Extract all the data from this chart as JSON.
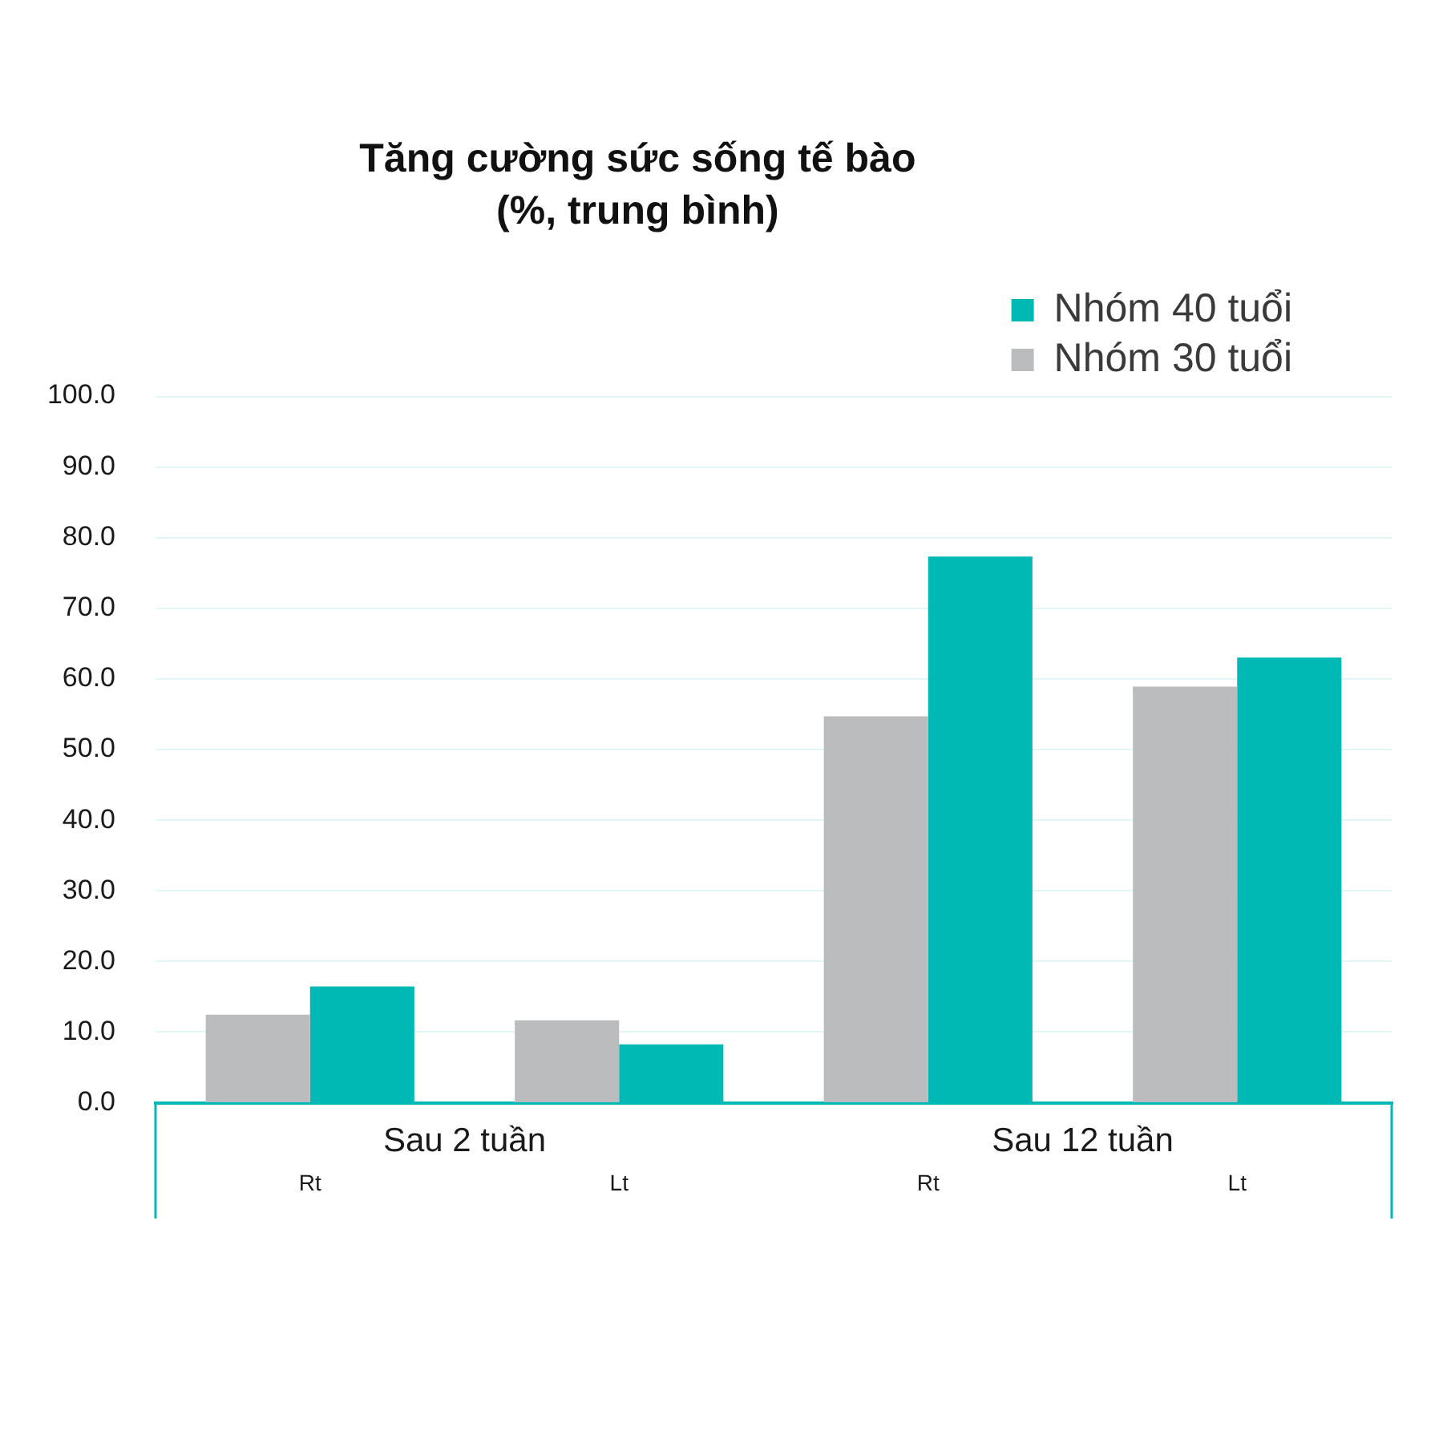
{
  "chart_data": {
    "type": "bar",
    "title": "Tăng cường sức sống tế bào\n(%, trung bình)",
    "categories": [
      "Rt",
      "Lt",
      "Rt",
      "Lt"
    ],
    "series": [
      {
        "name": "Nhóm 30 tuổi",
        "color": "#bbbcbe",
        "values": [
          12.5,
          11.7,
          54.7,
          58.9
        ]
      },
      {
        "name": "Nhóm 40 tuổi",
        "color": "#00b9b5",
        "values": [
          16.5,
          8.3,
          77.3,
          63.0
        ]
      }
    ],
    "ylim": [
      0,
      100
    ],
    "yticks": [
      {
        "value": 0,
        "label": "0.0"
      },
      {
        "value": 10,
        "label": "10.0"
      },
      {
        "value": 20,
        "label": "20.0"
      },
      {
        "value": 30,
        "label": "30.0"
      },
      {
        "value": 40,
        "label": "40.0"
      },
      {
        "value": 50,
        "label": "50.0"
      },
      {
        "value": 60,
        "label": "60.0"
      },
      {
        "value": 70,
        "label": "70.0"
      },
      {
        "value": 80,
        "label": "80.0"
      },
      {
        "value": 90,
        "label": "90.0"
      },
      {
        "value": 100,
        "label": "100.0"
      }
    ],
    "annotations": [
      "Sau 2 tuần",
      "Sau 12 tuần"
    ],
    "grid": "y",
    "legend": "top right"
  }
}
